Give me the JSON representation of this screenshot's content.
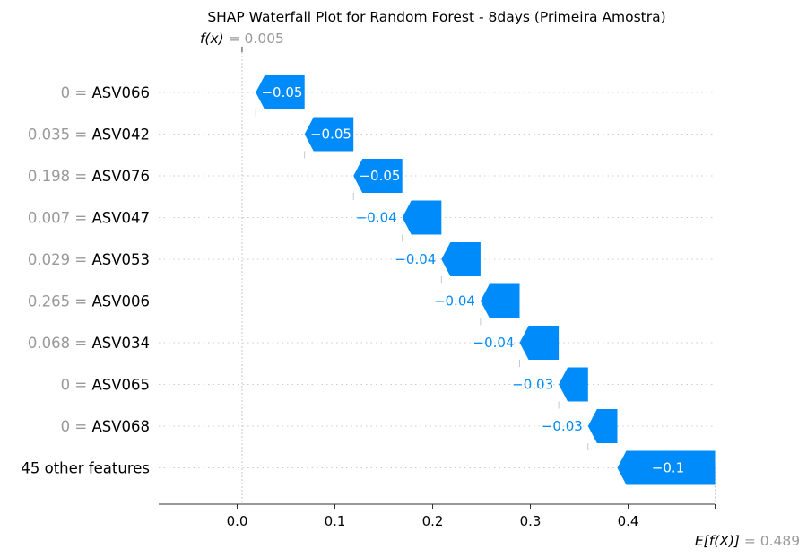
{
  "chart_data": {
    "type": "waterfall",
    "title": "SHAP Waterfall Plot for Random Forest - 8days (Primeira Amostra)",
    "fx_label": "f(x)",
    "fx_value_text": "= 0.005",
    "fx_value": 0.005,
    "base_label": "E[f(X)]",
    "base_value_text": "= 0.489",
    "base_value": 0.489,
    "xlim": [
      -0.075,
      0.49
    ],
    "xticks": [
      0.0,
      0.1,
      0.2,
      0.3,
      0.4
    ],
    "xtick_labels": [
      "0.0",
      "0.1",
      "0.2",
      "0.3",
      "0.4"
    ],
    "grid": true,
    "negative_color": "#008bfb",
    "features": [
      {
        "value": "0 =",
        "name": "ASV066",
        "shap": -0.05,
        "label": "−0.05"
      },
      {
        "value": "0.035 =",
        "name": "ASV042",
        "shap": -0.05,
        "label": "−0.05"
      },
      {
        "value": "0.198 =",
        "name": "ASV076",
        "shap": -0.05,
        "label": "−0.05"
      },
      {
        "value": "0.007 =",
        "name": "ASV047",
        "shap": -0.04,
        "label": "−0.04"
      },
      {
        "value": "0.029 =",
        "name": "ASV053",
        "shap": -0.04,
        "label": "−0.04"
      },
      {
        "value": "0.265 =",
        "name": "ASV006",
        "shap": -0.04,
        "label": "−0.04"
      },
      {
        "value": "0.068 =",
        "name": "ASV034",
        "shap": -0.04,
        "label": "−0.04"
      },
      {
        "value": "0 =",
        "name": "ASV065",
        "shap": -0.03,
        "label": "−0.03"
      },
      {
        "value": "0 =",
        "name": "ASV068",
        "shap": -0.03,
        "label": "−0.03"
      },
      {
        "value": "",
        "name": "45 other features",
        "shap": -0.1,
        "label": "−0.1"
      }
    ]
  }
}
